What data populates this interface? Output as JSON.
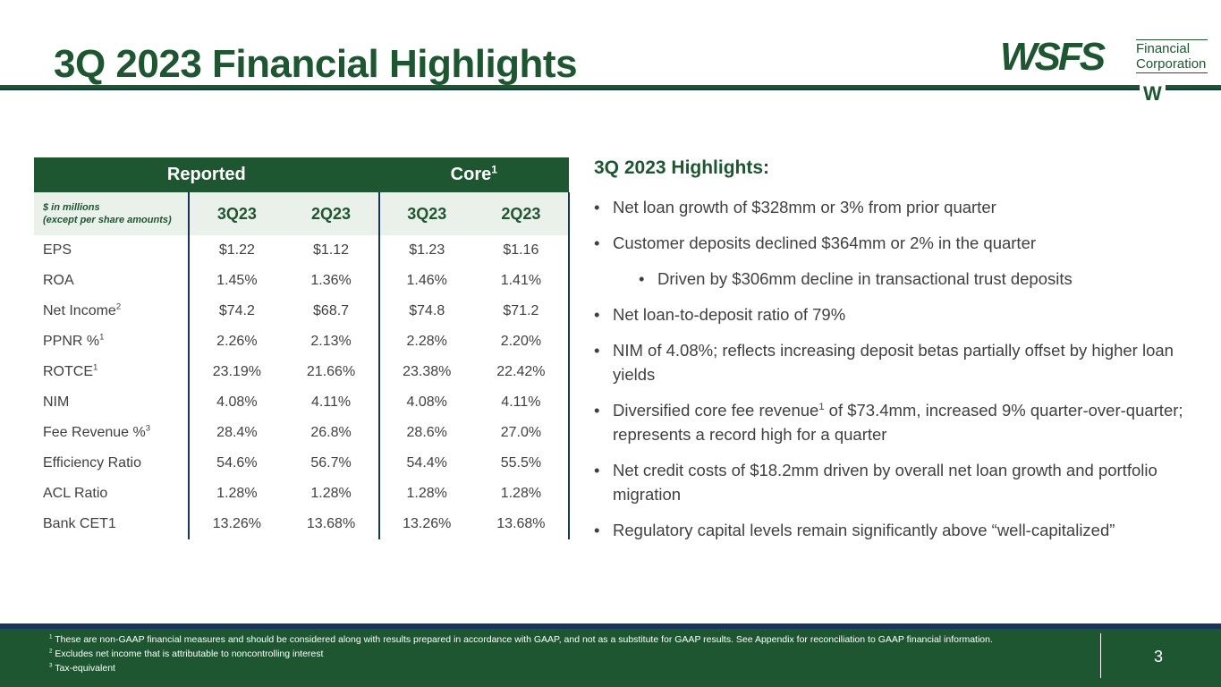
{
  "title": "3Q 2023 Financial Highlights",
  "logo": {
    "main": "WSFS",
    "line1": "Financial",
    "line2": "Corporation",
    "mark": "W"
  },
  "table": {
    "group_reported": "Reported",
    "group_core": "Core",
    "group_core_sup": "1",
    "unit_line1": "$ in millions",
    "unit_line2": "(except per share amounts)",
    "columns": [
      "3Q23",
      "2Q23",
      "3Q23",
      "2Q23"
    ],
    "rows": [
      {
        "name": "EPS",
        "sup": "",
        "values": [
          "$1.22",
          "$1.12",
          "$1.23",
          "$1.16"
        ]
      },
      {
        "name": "ROA",
        "sup": "",
        "values": [
          "1.45%",
          "1.36%",
          "1.46%",
          "1.41%"
        ]
      },
      {
        "name": "Net Income",
        "sup": "2",
        "values": [
          "$74.2",
          "$68.7",
          "$74.8",
          "$71.2"
        ]
      },
      {
        "name": "PPNR %",
        "sup": "1",
        "values": [
          "2.26%",
          "2.13%",
          "2.28%",
          "2.20%"
        ]
      },
      {
        "name": "ROTCE",
        "sup": "1",
        "values": [
          "23.19%",
          "21.66%",
          "23.38%",
          "22.42%"
        ]
      },
      {
        "name": "NIM",
        "sup": "",
        "values": [
          "4.08%",
          "4.11%",
          "4.08%",
          "4.11%"
        ]
      },
      {
        "name": "Fee Revenue %",
        "sup": "3",
        "values": [
          "28.4%",
          "26.8%",
          "28.6%",
          "27.0%"
        ]
      },
      {
        "name": "Efficiency Ratio",
        "sup": "",
        "values": [
          "54.6%",
          "56.7%",
          "54.4%",
          "55.5%"
        ]
      },
      {
        "name": "ACL Ratio",
        "sup": "",
        "values": [
          "1.28%",
          "1.28%",
          "1.28%",
          "1.28%"
        ]
      },
      {
        "name": "Bank CET1",
        "sup": "",
        "values": [
          "13.26%",
          "13.68%",
          "13.26%",
          "13.68%"
        ]
      }
    ]
  },
  "highlights": {
    "title": "3Q 2023 Highlights:",
    "items": [
      {
        "text": "Net loan growth of $328mm or 3% from prior quarter"
      },
      {
        "text": "Customer deposits declined $364mm or 2% in the quarter"
      },
      {
        "text": "Driven by $306mm decline in transactional trust deposits"
      },
      {
        "text": "Net loan-to-deposit ratio of 79%"
      },
      {
        "text": "NIM of 4.08%; reflects increasing deposit betas partially offset by higher loan yields"
      },
      {
        "text_before": "Diversified core fee revenue",
        "sup": "1",
        "text_after": " of $73.4mm, increased 9% quarter-over-quarter; represents a record high for a quarter"
      },
      {
        "text": "Net credit costs of $18.2mm driven by overall net loan growth and portfolio migration"
      },
      {
        "text": "Regulatory capital levels remain significantly above “well-capitalized”"
      }
    ]
  },
  "footnotes": [
    {
      "num": "1",
      "text": " These are non-GAAP financial measures and should be considered along with results prepared in accordance with GAAP, and not as a substitute for GAAP results.  See Appendix for reconciliation to GAAP financial information."
    },
    {
      "num": "2",
      "text": " Excludes net income that is attributable to noncontrolling interest"
    },
    {
      "num": "3",
      "text": " Tax-equivalent"
    }
  ],
  "page_number": "3",
  "colors": {
    "brand_green": "#1e5631",
    "brand_navy": "#17365d",
    "text": "#404040"
  }
}
